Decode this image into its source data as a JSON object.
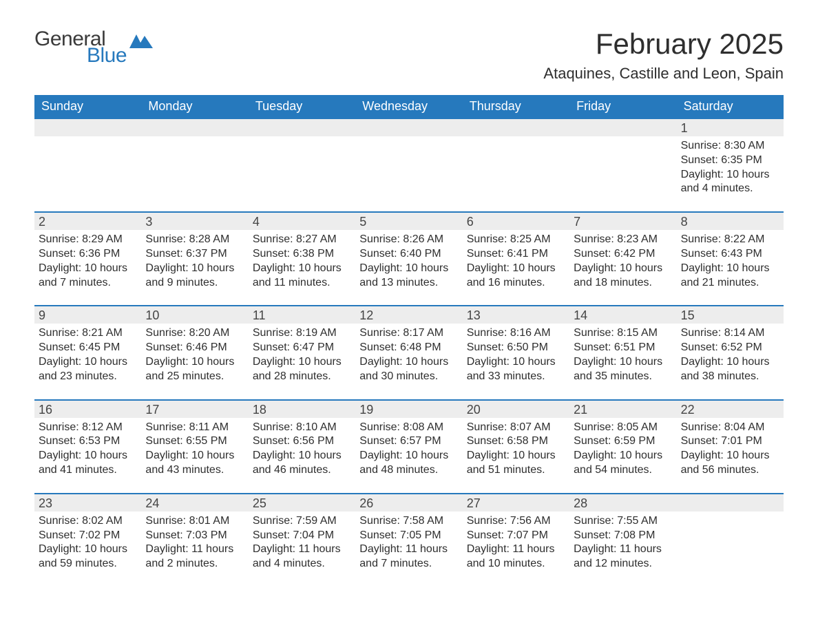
{
  "logo": {
    "word1": "General",
    "word2": "Blue",
    "brand_color": "#2679bd",
    "text_color": "#3a3a3a"
  },
  "title": "February 2025",
  "location": "Ataquines, Castille and Leon, Spain",
  "colors": {
    "header_bg": "#2679bd",
    "header_text": "#ffffff",
    "band_bg": "#ededed",
    "body_text": "#2e2e2e",
    "page_bg": "#ffffff",
    "row_border": "#2679bd"
  },
  "day_headers": [
    "Sunday",
    "Monday",
    "Tuesday",
    "Wednesday",
    "Thursday",
    "Friday",
    "Saturday"
  ],
  "weeks": [
    [
      {
        "n": "",
        "sr": "",
        "ss": "",
        "dl1": "",
        "dl2": ""
      },
      {
        "n": "",
        "sr": "",
        "ss": "",
        "dl1": "",
        "dl2": ""
      },
      {
        "n": "",
        "sr": "",
        "ss": "",
        "dl1": "",
        "dl2": ""
      },
      {
        "n": "",
        "sr": "",
        "ss": "",
        "dl1": "",
        "dl2": ""
      },
      {
        "n": "",
        "sr": "",
        "ss": "",
        "dl1": "",
        "dl2": ""
      },
      {
        "n": "",
        "sr": "",
        "ss": "",
        "dl1": "",
        "dl2": ""
      },
      {
        "n": "1",
        "sr": "Sunrise: 8:30 AM",
        "ss": "Sunset: 6:35 PM",
        "dl1": "Daylight: 10 hours",
        "dl2": "and 4 minutes."
      }
    ],
    [
      {
        "n": "2",
        "sr": "Sunrise: 8:29 AM",
        "ss": "Sunset: 6:36 PM",
        "dl1": "Daylight: 10 hours",
        "dl2": "and 7 minutes."
      },
      {
        "n": "3",
        "sr": "Sunrise: 8:28 AM",
        "ss": "Sunset: 6:37 PM",
        "dl1": "Daylight: 10 hours",
        "dl2": "and 9 minutes."
      },
      {
        "n": "4",
        "sr": "Sunrise: 8:27 AM",
        "ss": "Sunset: 6:38 PM",
        "dl1": "Daylight: 10 hours",
        "dl2": "and 11 minutes."
      },
      {
        "n": "5",
        "sr": "Sunrise: 8:26 AM",
        "ss": "Sunset: 6:40 PM",
        "dl1": "Daylight: 10 hours",
        "dl2": "and 13 minutes."
      },
      {
        "n": "6",
        "sr": "Sunrise: 8:25 AM",
        "ss": "Sunset: 6:41 PM",
        "dl1": "Daylight: 10 hours",
        "dl2": "and 16 minutes."
      },
      {
        "n": "7",
        "sr": "Sunrise: 8:23 AM",
        "ss": "Sunset: 6:42 PM",
        "dl1": "Daylight: 10 hours",
        "dl2": "and 18 minutes."
      },
      {
        "n": "8",
        "sr": "Sunrise: 8:22 AM",
        "ss": "Sunset: 6:43 PM",
        "dl1": "Daylight: 10 hours",
        "dl2": "and 21 minutes."
      }
    ],
    [
      {
        "n": "9",
        "sr": "Sunrise: 8:21 AM",
        "ss": "Sunset: 6:45 PM",
        "dl1": "Daylight: 10 hours",
        "dl2": "and 23 minutes."
      },
      {
        "n": "10",
        "sr": "Sunrise: 8:20 AM",
        "ss": "Sunset: 6:46 PM",
        "dl1": "Daylight: 10 hours",
        "dl2": "and 25 minutes."
      },
      {
        "n": "11",
        "sr": "Sunrise: 8:19 AM",
        "ss": "Sunset: 6:47 PM",
        "dl1": "Daylight: 10 hours",
        "dl2": "and 28 minutes."
      },
      {
        "n": "12",
        "sr": "Sunrise: 8:17 AM",
        "ss": "Sunset: 6:48 PM",
        "dl1": "Daylight: 10 hours",
        "dl2": "and 30 minutes."
      },
      {
        "n": "13",
        "sr": "Sunrise: 8:16 AM",
        "ss": "Sunset: 6:50 PM",
        "dl1": "Daylight: 10 hours",
        "dl2": "and 33 minutes."
      },
      {
        "n": "14",
        "sr": "Sunrise: 8:15 AM",
        "ss": "Sunset: 6:51 PM",
        "dl1": "Daylight: 10 hours",
        "dl2": "and 35 minutes."
      },
      {
        "n": "15",
        "sr": "Sunrise: 8:14 AM",
        "ss": "Sunset: 6:52 PM",
        "dl1": "Daylight: 10 hours",
        "dl2": "and 38 minutes."
      }
    ],
    [
      {
        "n": "16",
        "sr": "Sunrise: 8:12 AM",
        "ss": "Sunset: 6:53 PM",
        "dl1": "Daylight: 10 hours",
        "dl2": "and 41 minutes."
      },
      {
        "n": "17",
        "sr": "Sunrise: 8:11 AM",
        "ss": "Sunset: 6:55 PM",
        "dl1": "Daylight: 10 hours",
        "dl2": "and 43 minutes."
      },
      {
        "n": "18",
        "sr": "Sunrise: 8:10 AM",
        "ss": "Sunset: 6:56 PM",
        "dl1": "Daylight: 10 hours",
        "dl2": "and 46 minutes."
      },
      {
        "n": "19",
        "sr": "Sunrise: 8:08 AM",
        "ss": "Sunset: 6:57 PM",
        "dl1": "Daylight: 10 hours",
        "dl2": "and 48 minutes."
      },
      {
        "n": "20",
        "sr": "Sunrise: 8:07 AM",
        "ss": "Sunset: 6:58 PM",
        "dl1": "Daylight: 10 hours",
        "dl2": "and 51 minutes."
      },
      {
        "n": "21",
        "sr": "Sunrise: 8:05 AM",
        "ss": "Sunset: 6:59 PM",
        "dl1": "Daylight: 10 hours",
        "dl2": "and 54 minutes."
      },
      {
        "n": "22",
        "sr": "Sunrise: 8:04 AM",
        "ss": "Sunset: 7:01 PM",
        "dl1": "Daylight: 10 hours",
        "dl2": "and 56 minutes."
      }
    ],
    [
      {
        "n": "23",
        "sr": "Sunrise: 8:02 AM",
        "ss": "Sunset: 7:02 PM",
        "dl1": "Daylight: 10 hours",
        "dl2": "and 59 minutes."
      },
      {
        "n": "24",
        "sr": "Sunrise: 8:01 AM",
        "ss": "Sunset: 7:03 PM",
        "dl1": "Daylight: 11 hours",
        "dl2": "and 2 minutes."
      },
      {
        "n": "25",
        "sr": "Sunrise: 7:59 AM",
        "ss": "Sunset: 7:04 PM",
        "dl1": "Daylight: 11 hours",
        "dl2": "and 4 minutes."
      },
      {
        "n": "26",
        "sr": "Sunrise: 7:58 AM",
        "ss": "Sunset: 7:05 PM",
        "dl1": "Daylight: 11 hours",
        "dl2": "and 7 minutes."
      },
      {
        "n": "27",
        "sr": "Sunrise: 7:56 AM",
        "ss": "Sunset: 7:07 PM",
        "dl1": "Daylight: 11 hours",
        "dl2": "and 10 minutes."
      },
      {
        "n": "28",
        "sr": "Sunrise: 7:55 AM",
        "ss": "Sunset: 7:08 PM",
        "dl1": "Daylight: 11 hours",
        "dl2": "and 12 minutes."
      },
      {
        "n": "",
        "sr": "",
        "ss": "",
        "dl1": "",
        "dl2": ""
      }
    ]
  ]
}
